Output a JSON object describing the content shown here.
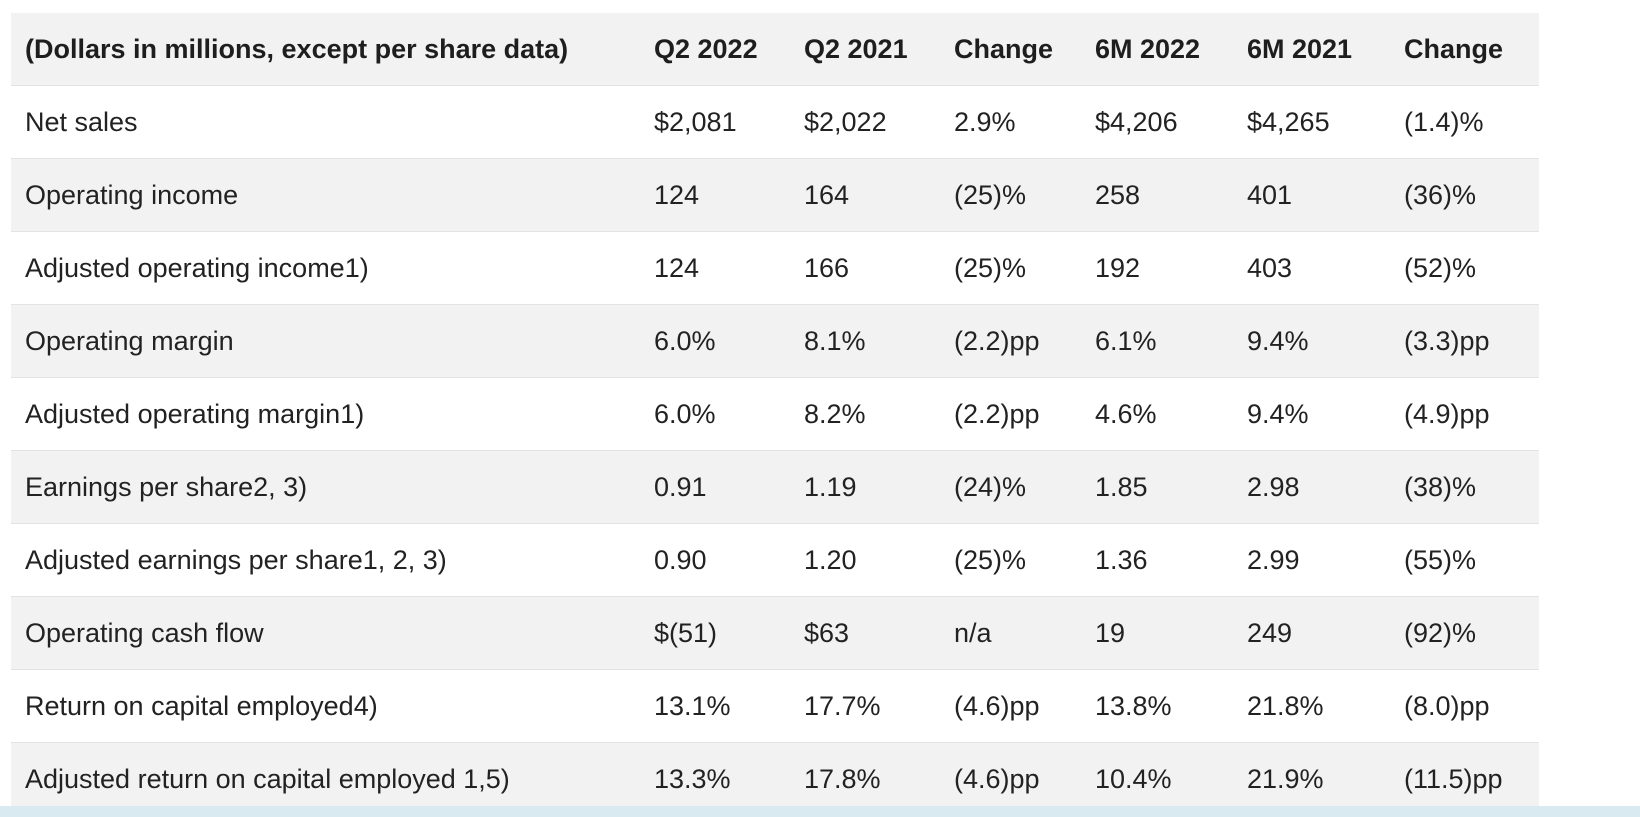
{
  "table": {
    "headers": [
      "(Dollars in millions, except per share data)",
      "Q2 2022",
      "Q2 2021",
      "Change",
      "6M 2022",
      "6M  2021",
      "Change"
    ],
    "rows": [
      [
        "Net sales",
        "$2,081",
        "$2,022",
        "2.9%",
        "$4,206",
        "$4,265",
        "(1.4)%"
      ],
      [
        "Operating income",
        "124",
        "164",
        "(25)%",
        "258",
        "401",
        "(36)%"
      ],
      [
        "Adjusted operating income1)",
        "124",
        "166",
        "(25)%",
        "192",
        "403",
        "(52)%"
      ],
      [
        "Operating margin",
        "6.0%",
        "8.1%",
        "(2.2)pp",
        "6.1%",
        "9.4%",
        "(3.3)pp"
      ],
      [
        "Adjusted operating margin1)",
        "6.0%",
        "8.2%",
        "(2.2)pp",
        "4.6%",
        "9.4%",
        "(4.9)pp"
      ],
      [
        "Earnings per share2, 3)",
        "0.91",
        "1.19",
        "(24)%",
        "1.85",
        "2.98",
        "(38)%"
      ],
      [
        "Adjusted earnings per share1, 2, 3)",
        "0.90",
        "1.20",
        "(25)%",
        "1.36",
        "2.99",
        "(55)%"
      ],
      [
        "Operating cash flow",
        "$(51)",
        "$63",
        "n/a",
        "19",
        "249",
        "(92)%"
      ],
      [
        "Return on capital employed4)",
        "13.1%",
        "17.7%",
        "(4.6)pp",
        "13.8%",
        "21.8%",
        "(8.0)pp"
      ],
      [
        "Adjusted return on capital employed 1,5)",
        "13.3%",
        "17.8%",
        "(4.6)pp",
        "10.4%",
        "21.9%",
        "(11.5)pp"
      ]
    ]
  }
}
